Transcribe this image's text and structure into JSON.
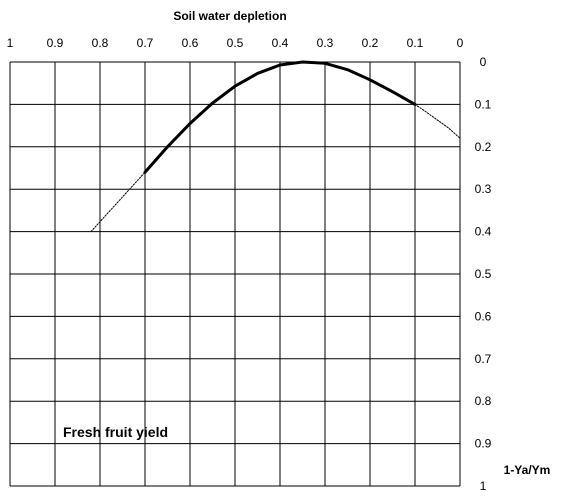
{
  "chart_data": {
    "type": "line",
    "title": "Soil water depletion",
    "xlabel": "Soil water depletion",
    "ylabel": "1-Ya/Ym",
    "annotation": "Fresh fruit yield",
    "x_axis": {
      "position": "top",
      "reversed": true,
      "range": [
        1,
        0
      ]
    },
    "y_axis": {
      "position": "right",
      "reversed": true,
      "range": [
        0,
        1
      ]
    },
    "grid": true,
    "x_ticks": [
      "1",
      "0.9",
      "0.8",
      "0.7",
      "0.6",
      "0.5",
      "0.4",
      "0.3",
      "0.2",
      "0.1",
      "0"
    ],
    "y_ticks": [
      "0",
      "0.1",
      "0.2",
      "0.3",
      "0.4",
      "0.5",
      "0.6",
      "0.7",
      "0.8",
      "0.9",
      "1"
    ],
    "series": [
      {
        "style": "thick",
        "x": [
          0.7,
          0.65,
          0.6,
          0.55,
          0.5,
          0.45,
          0.4,
          0.35,
          0.3,
          0.25,
          0.2,
          0.15,
          0.1
        ],
        "y": [
          0.26,
          0.2,
          0.145,
          0.097,
          0.057,
          0.027,
          0.007,
          0.0,
          0.003,
          0.018,
          0.042,
          0.07,
          0.1
        ]
      },
      {
        "style": "dotted",
        "x": [
          0.82,
          0.79,
          0.76,
          0.73,
          0.7
        ],
        "y": [
          0.4,
          0.365,
          0.33,
          0.295,
          0.26
        ]
      },
      {
        "style": "dotted",
        "x": [
          0.1,
          0.075,
          0.05,
          0.025,
          0.0
        ],
        "y": [
          0.1,
          0.118,
          0.137,
          0.156,
          0.18
        ]
      }
    ]
  }
}
